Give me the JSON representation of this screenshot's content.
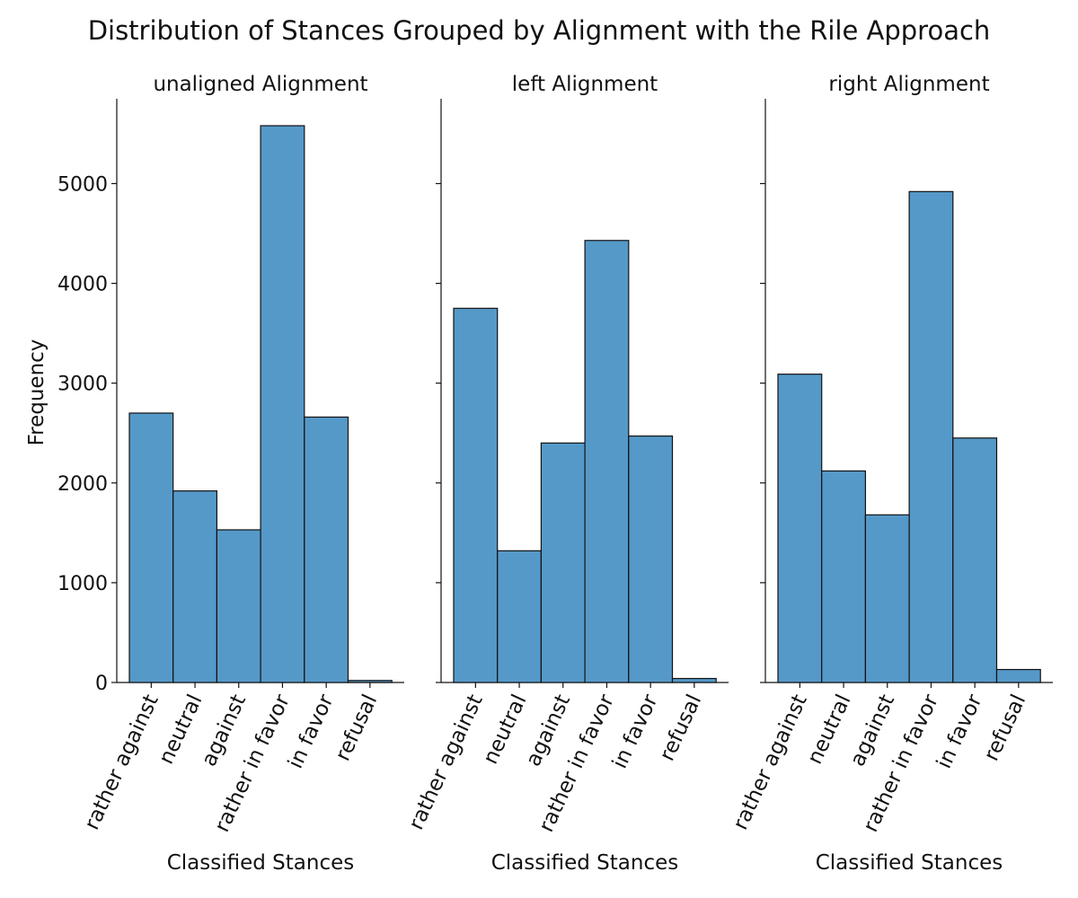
{
  "chart_data": {
    "type": "bar",
    "title": "Distribution of Stances Grouped by Alignment with the Rile Approach",
    "ylabel": "Frequency",
    "xlabel": "Classified Stances",
    "categories": [
      "rather against",
      "neutral",
      "against",
      "rather in favor",
      "in favor",
      "refusal"
    ],
    "ylim": [
      0,
      5850
    ],
    "yticks": [
      0,
      1000,
      2000,
      3000,
      4000,
      5000
    ],
    "bar_color": "#5599c8",
    "panels": [
      {
        "title": "unaligned Alignment",
        "values": [
          2700,
          1920,
          1530,
          5580,
          2660,
          20
        ]
      },
      {
        "title": "left Alignment",
        "values": [
          3750,
          1320,
          2400,
          4430,
          2470,
          40
        ]
      },
      {
        "title": "right Alignment",
        "values": [
          3090,
          2120,
          1680,
          4920,
          2450,
          130
        ]
      }
    ]
  }
}
